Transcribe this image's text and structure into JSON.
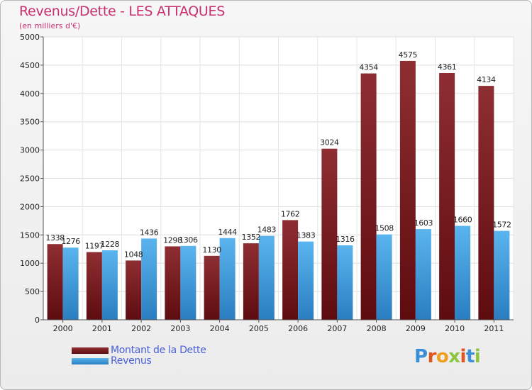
{
  "title": "Revenus/Dette - LES ATTAQUES",
  "subtitle": "(en milliers d'€)",
  "logo": "Proxiti",
  "colors": {
    "title": "#c8306e",
    "debt_dark": "#5e0c10",
    "debt_light": "#8e2e32",
    "revenue_dark": "#2a7ec0",
    "revenue_light": "#5ab4ee",
    "legend_text": "#4a5fd8"
  },
  "chart_data": {
    "type": "bar",
    "categories": [
      "2000",
      "2001",
      "2002",
      "2003",
      "2004",
      "2005",
      "2006",
      "2007",
      "2008",
      "2009",
      "2010",
      "2011"
    ],
    "series": [
      {
        "name": "Montant de la Dette",
        "values": [
          1338,
          1197,
          1048,
          1298,
          1130,
          1352,
          1762,
          3024,
          4354,
          4575,
          4361,
          4134
        ]
      },
      {
        "name": "Revenus",
        "values": [
          1276,
          1228,
          1436,
          1306,
          1444,
          1483,
          1383,
          1316,
          1508,
          1603,
          1660,
          1572
        ]
      }
    ],
    "ylim": [
      0,
      5000
    ],
    "yticks": [
      0,
      500,
      1000,
      1500,
      2000,
      2500,
      3000,
      3500,
      4000,
      4500,
      5000
    ],
    "grid": true,
    "legend_position": "bottom-left"
  }
}
